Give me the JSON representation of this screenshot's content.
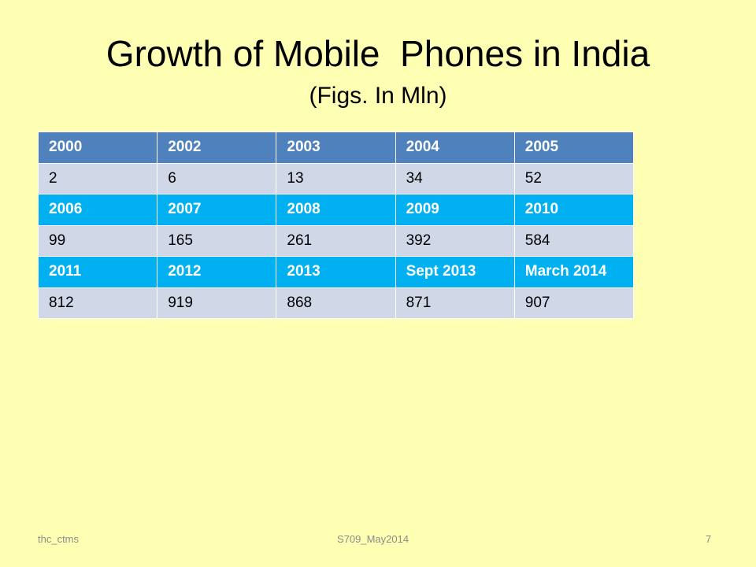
{
  "slide": {
    "title": "Growth of Mobile  Phones in India",
    "subtitle": "(Figs. In Mln)"
  },
  "table": {
    "rows": [
      {
        "type": "year",
        "cells": [
          "2000",
          "2002",
          "2003",
          "2004",
          "2005"
        ]
      },
      {
        "type": "value",
        "cells": [
          "2",
          "6",
          "13",
          "34",
          "52"
        ]
      },
      {
        "type": "year",
        "cells": [
          "2006",
          "2007",
          "2008",
          "2009",
          "2010"
        ]
      },
      {
        "type": "value",
        "cells": [
          "99",
          "165",
          "261",
          "392",
          "584"
        ]
      },
      {
        "type": "year",
        "cells": [
          "2011",
          "2012",
          "2013",
          "Sept 2013",
          "March 2014"
        ]
      },
      {
        "type": "value",
        "cells": [
          "812",
          "919",
          "868",
          "871",
          "907"
        ]
      }
    ]
  },
  "footer": {
    "left": "thc_ctms",
    "center": "S709_May2014",
    "page_number": "7"
  },
  "colors": {
    "background": "#ffffb3",
    "header_row_first": "#4f81bd",
    "header_row_alt": "#00b0f0",
    "value_row": "#d0d8e8"
  }
}
